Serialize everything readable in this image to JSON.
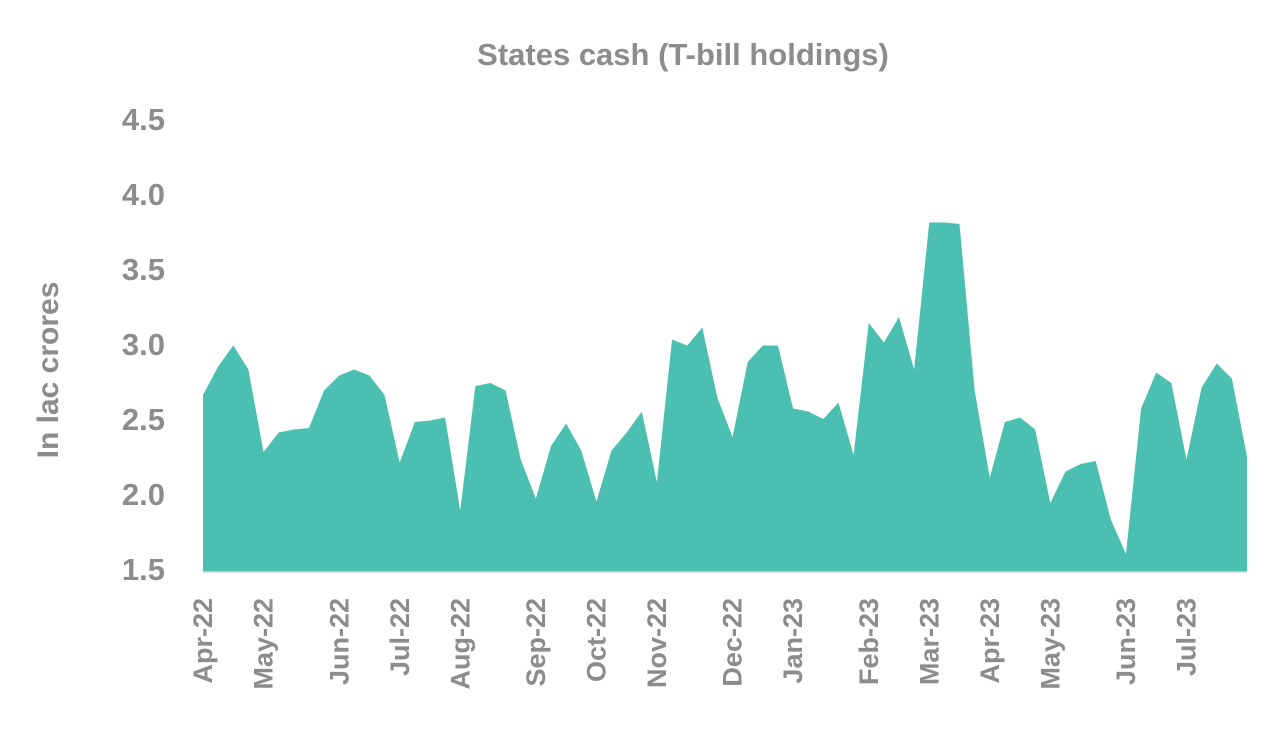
{
  "chart_data": {
    "type": "area",
    "title": "States cash (T-bill holdings)",
    "y_label": "In lac crores",
    "categories": [
      "Apr-22",
      null,
      null,
      null,
      "May-22",
      null,
      null,
      null,
      null,
      "Jun-22",
      null,
      null,
      null,
      "Jul-22",
      null,
      null,
      null,
      "Aug-22",
      null,
      null,
      null,
      null,
      "Sep-22",
      null,
      null,
      null,
      "Oct-22",
      null,
      null,
      null,
      "Nov-22",
      null,
      null,
      null,
      null,
      "Dec-22",
      null,
      null,
      null,
      "Jan-23",
      null,
      null,
      null,
      null,
      "Feb-23",
      null,
      null,
      null,
      "Mar-23",
      null,
      null,
      null,
      "Apr-23",
      null,
      null,
      null,
      "May-23",
      null,
      null,
      null,
      null,
      "Jun-23",
      null,
      null,
      null,
      "Jul-23",
      null,
      null,
      null,
      null
    ],
    "values": [
      2.68,
      2.87,
      3.01,
      2.85,
      2.3,
      2.43,
      2.45,
      2.46,
      2.71,
      2.81,
      2.85,
      2.81,
      2.68,
      2.23,
      2.5,
      2.51,
      2.53,
      1.91,
      2.74,
      2.76,
      2.71,
      2.25,
      1.99,
      2.34,
      2.49,
      2.31,
      1.97,
      2.31,
      2.43,
      2.57,
      2.1,
      3.05,
      3.01,
      3.13,
      2.66,
      2.4,
      2.9,
      3.01,
      3.01,
      2.59,
      2.57,
      2.52,
      2.63,
      2.28,
      3.16,
      3.03,
      3.2,
      2.85,
      3.83,
      3.83,
      3.82,
      2.71,
      2.13,
      2.5,
      2.53,
      2.45,
      1.96,
      2.17,
      2.22,
      2.24,
      1.85,
      1.62,
      2.59,
      2.83,
      2.76,
      2.25,
      2.73,
      2.89,
      2.79,
      2.27
    ],
    "color": "#4bc0b0",
    "ylim": [
      1.5,
      4.5
    ],
    "yticks": [
      {
        "value": 1.5,
        "label": "1.5"
      },
      {
        "value": 2,
        "label": "2.0"
      },
      {
        "value": 2.5,
        "label": "2.5"
      },
      {
        "value": 3,
        "label": "3.0"
      },
      {
        "value": 3.5,
        "label": "3.5"
      },
      {
        "value": 4,
        "label": "4.0"
      },
      {
        "value": 4.5,
        "label": "4.5"
      }
    ],
    "grid": false
  }
}
